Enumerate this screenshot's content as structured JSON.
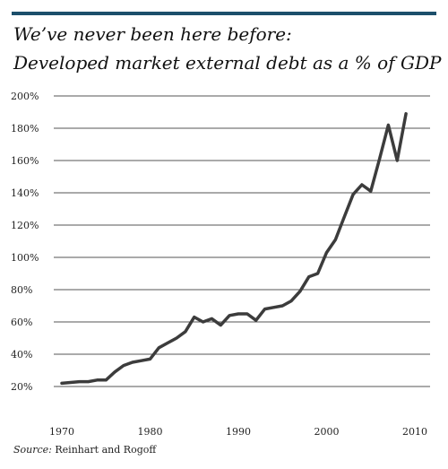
{
  "header": {
    "title": "We’ve never been here before:",
    "subtitle": "Developed market external debt as a % of GDP"
  },
  "footer": {
    "source_label": "Source:",
    "source_text": "Reinhart and Rogoff"
  },
  "colors": {
    "accent_rule": "#1c4f6b",
    "line": "#3c3c3c",
    "grid": "#555555"
  },
  "chart_data": {
    "type": "line",
    "title": "",
    "xlabel": "",
    "ylabel": "",
    "xlim": [
      1970,
      2010
    ],
    "ylim": [
      0,
      200
    ],
    "grid": "horizontal",
    "yticks": [
      20,
      40,
      60,
      80,
      100,
      120,
      140,
      160,
      180,
      200
    ],
    "ytick_labels": [
      "20%",
      "40%",
      "60%",
      "80%",
      "100%",
      "120%",
      "140%",
      "160%",
      "180%",
      "200%"
    ],
    "xticks": [
      1970,
      1980,
      1990,
      2000,
      2010
    ],
    "xtick_labels": [
      "1970",
      "1980",
      "1990",
      "2000",
      "2010"
    ],
    "series": [
      {
        "x": [
          1970,
          1971,
          1972,
          1973,
          1974,
          1975,
          1976,
          1977,
          1978,
          1979,
          1980,
          1981,
          1982,
          1983,
          1984,
          1985,
          1986,
          1987,
          1988,
          1989,
          1990,
          1991,
          1992,
          1993,
          1994,
          1995,
          1996,
          1997,
          1998,
          1999,
          2000,
          2001,
          2002,
          2003,
          2004,
          2005,
          2006,
          2007,
          2008,
          2009
        ],
        "values": [
          22,
          22.5,
          23,
          23,
          24,
          24,
          29,
          33,
          35,
          36,
          37,
          44,
          47,
          50,
          54,
          63,
          60,
          62,
          58,
          64,
          65,
          65,
          61,
          68,
          69,
          70,
          73,
          79,
          88,
          90,
          103,
          111,
          125,
          139,
          145,
          141,
          161,
          182,
          160,
          189
        ]
      }
    ]
  }
}
